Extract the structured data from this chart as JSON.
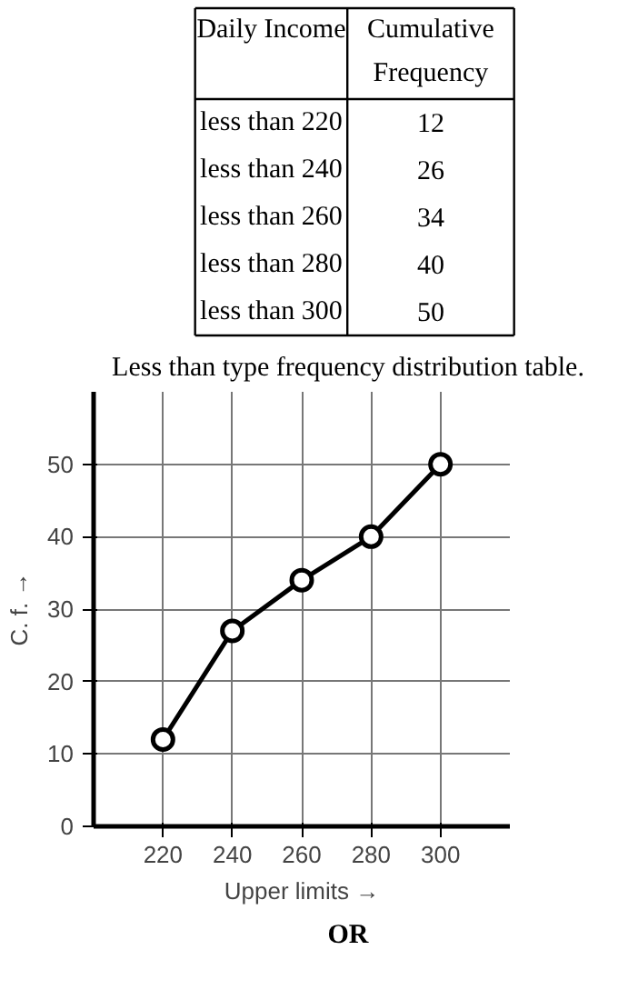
{
  "chart_data": [
    {
      "type": "other",
      "xlabel": "Daily Income",
      "ylabel": "Cumulative Frequency",
      "categories": [
        "less than 220",
        "less than 240",
        "less than 260",
        "less than 280",
        "less than 300"
      ],
      "values": [
        12,
        26,
        34,
        40,
        50
      ],
      "data_labels": true,
      "annotations": [
        "Less than type frequency distribution table."
      ]
    },
    {
      "type": "line",
      "x": [
        220,
        240,
        260,
        280,
        300
      ],
      "series": [
        {
          "color": "#000000",
          "values": [
            12,
            27,
            34,
            40,
            50
          ]
        }
      ],
      "xlabel": "Upper limits →",
      "ylabel": "C. f. →",
      "xlim": [
        200,
        320
      ],
      "ylim": [
        0,
        60
      ],
      "xticks": [
        220,
        240,
        260,
        280,
        300
      ],
      "yticks": [
        {
          "value": 0,
          "label": "0"
        },
        10,
        20,
        30,
        40,
        50
      ],
      "grid": true,
      "marker": "circle",
      "line_style": "solid",
      "annotations": [
        "OR"
      ]
    }
  ]
}
